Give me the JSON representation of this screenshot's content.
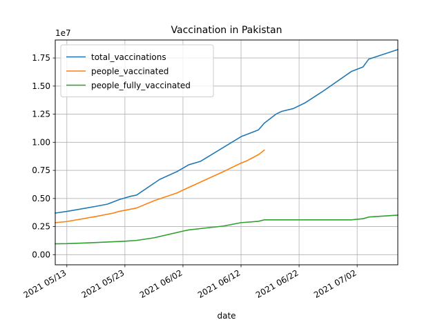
{
  "chart_data": {
    "type": "line",
    "title": "Vaccination in Pakistan",
    "xlabel": "date",
    "ylabel": "",
    "y_offset_label": "1e7",
    "grid": true,
    "legend_position": "upper left",
    "xlim": [
      "2021-05-11",
      "2021-07-09"
    ],
    "ylim": [
      -0.09,
      1.91
    ],
    "x_ticks": [
      "2021-05-13",
      "2021-05-23",
      "2021-06-02",
      "2021-06-12",
      "2021-06-22",
      "2021-07-02"
    ],
    "x_tick_labels": [
      "2021 05/13",
      "2021 05/23",
      "2021 06/02",
      "2021 06/12",
      "2021 06/22",
      "2021 07/02"
    ],
    "y_ticks": [
      0.0,
      0.25,
      0.5,
      0.75,
      1.0,
      1.25,
      1.5,
      1.75
    ],
    "y_tick_labels": [
      "0.00",
      "0.25",
      "0.50",
      "0.75",
      "1.00",
      "1.25",
      "1.50",
      "1.75"
    ],
    "series": [
      {
        "name": "total_vaccinations",
        "color": "#1f77b4",
        "points": [
          [
            "2021-05-11",
            0.37
          ],
          [
            "2021-05-13",
            0.385
          ],
          [
            "2021-05-18",
            0.43
          ],
          [
            "2021-05-20",
            0.45
          ],
          [
            "2021-05-21",
            0.47
          ],
          [
            "2021-05-22",
            0.49
          ],
          [
            "2021-05-23",
            0.505
          ],
          [
            "2021-05-24",
            0.52
          ],
          [
            "2021-05-25",
            0.53
          ],
          [
            "2021-05-29",
            0.67
          ],
          [
            "2021-06-01",
            0.74
          ],
          [
            "2021-06-02",
            0.77
          ],
          [
            "2021-06-03",
            0.8
          ],
          [
            "2021-06-05",
            0.83
          ],
          [
            "2021-06-12",
            1.05
          ],
          [
            "2021-06-15",
            1.11
          ],
          [
            "2021-06-16",
            1.17
          ],
          [
            "2021-06-17",
            1.21
          ],
          [
            "2021-06-18",
            1.25
          ],
          [
            "2021-06-19",
            1.275
          ],
          [
            "2021-06-21",
            1.3
          ],
          [
            "2021-06-23",
            1.35
          ],
          [
            "2021-06-26",
            1.45
          ],
          [
            "2021-07-01",
            1.63
          ],
          [
            "2021-07-03",
            1.67
          ],
          [
            "2021-07-04",
            1.74
          ],
          [
            "2021-07-09",
            1.825
          ]
        ]
      },
      {
        "name": "people_vaccinated",
        "color": "#ff7f0e",
        "points": [
          [
            "2021-05-11",
            0.285
          ],
          [
            "2021-05-13",
            0.295
          ],
          [
            "2021-05-18",
            0.34
          ],
          [
            "2021-05-20",
            0.36
          ],
          [
            "2021-05-21",
            0.37
          ],
          [
            "2021-05-22",
            0.385
          ],
          [
            "2021-05-23",
            0.395
          ],
          [
            "2021-05-24",
            0.405
          ],
          [
            "2021-05-25",
            0.415
          ],
          [
            "2021-05-28",
            0.48
          ],
          [
            "2021-06-01",
            0.55
          ],
          [
            "2021-06-02",
            0.575
          ],
          [
            "2021-06-09",
            0.74
          ],
          [
            "2021-06-12",
            0.815
          ],
          [
            "2021-06-13",
            0.835
          ],
          [
            "2021-06-15",
            0.89
          ],
          [
            "2021-06-16",
            0.93
          ]
        ]
      },
      {
        "name": "people_fully_vaccinated",
        "color": "#2ca02c",
        "points": [
          [
            "2021-05-11",
            0.097
          ],
          [
            "2021-05-13",
            0.098
          ],
          [
            "2021-05-18",
            0.108
          ],
          [
            "2021-05-23",
            0.12
          ],
          [
            "2021-05-25",
            0.127
          ],
          [
            "2021-05-28",
            0.15
          ],
          [
            "2021-06-02",
            0.21
          ],
          [
            "2021-06-03",
            0.22
          ],
          [
            "2021-06-05",
            0.232
          ],
          [
            "2021-06-09",
            0.255
          ],
          [
            "2021-06-12",
            0.285
          ],
          [
            "2021-06-15",
            0.297
          ],
          [
            "2021-06-16",
            0.31
          ],
          [
            "2021-07-01",
            0.31
          ],
          [
            "2021-07-03",
            0.32
          ],
          [
            "2021-07-04",
            0.335
          ],
          [
            "2021-07-09",
            0.352
          ]
        ]
      }
    ]
  }
}
